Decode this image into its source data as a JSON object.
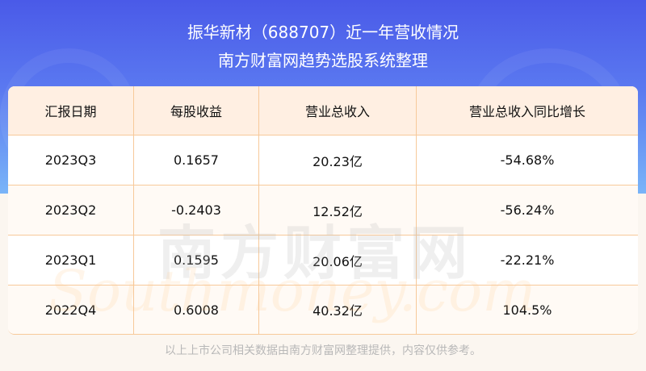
{
  "header": {
    "title": "振华新材（688707）近一年营收情况",
    "subtitle": "南方财富网趋势选股系统整理"
  },
  "table": {
    "columns": [
      "汇报日期",
      "每股收益",
      "营业总收入",
      "营业总收入同比增长"
    ],
    "rows": [
      [
        "2023Q3",
        "0.1657",
        "20.23亿",
        "-54.68%"
      ],
      [
        "2023Q2",
        "-0.2403",
        "12.52亿",
        "-56.24%"
      ],
      [
        "2023Q1",
        "0.1595",
        "20.06亿",
        "-22.21%"
      ],
      [
        "2022Q4",
        "0.6008",
        "40.32亿",
        "104.5%"
      ]
    ]
  },
  "watermark": {
    "cn": "南方财富网",
    "en": "Southmoney.com"
  },
  "footer": "以上上市公司相关数据由南方财富网整理提供，内容仅供参考。",
  "colors": {
    "header_bg": "#4a5ae8",
    "table_header": "#ffefe2",
    "border": "#f7c99a"
  }
}
